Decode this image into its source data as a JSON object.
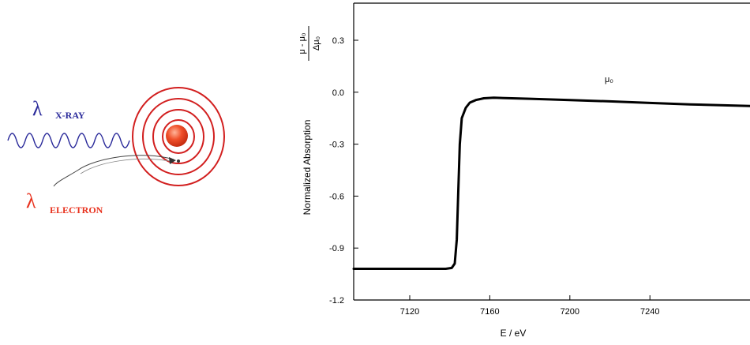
{
  "diagram": {
    "xray_symbol": "λ",
    "xray_label": "X-RAY",
    "electron_symbol": "λ",
    "electron_label": "ELECTRON",
    "colors": {
      "xray": "#2a2a9a",
      "electron": "#e8321e",
      "rings": "#d21f1f"
    },
    "icons": [
      "xray-wave-icon",
      "atom-icon",
      "curved-arrow-icon"
    ]
  },
  "chart_data": {
    "type": "line",
    "title": "",
    "xlabel": "E / eV",
    "ylabel": "Normalized Absorption",
    "ylabel_formula": {
      "numerator": "μ - μ₀",
      "denominator": "Δμ₀"
    },
    "annotation": "μ₀",
    "xlim": [
      7092,
      7290
    ],
    "ylim": [
      -1.2,
      0.45
    ],
    "xticks": [
      7120,
      7160,
      7200,
      7240
    ],
    "yticks": [
      0.3,
      0.0,
      -0.3,
      -0.6,
      -0.9,
      -1.2
    ],
    "ytick_labels": [
      "0.3",
      "0.0",
      "-0.3",
      "-0.6",
      "-0.9",
      "-1.2"
    ],
    "series": [
      {
        "x": [
          7092,
          7120,
          7138,
          7141,
          7142.5,
          7143.5,
          7144.2,
          7145,
          7146,
          7148,
          7150,
          7153,
          7157,
          7162,
          7180,
          7200,
          7220,
          7240,
          7260,
          7290
        ],
        "y": [
          -1.02,
          -1.02,
          -1.02,
          -1.015,
          -0.99,
          -0.85,
          -0.6,
          -0.3,
          -0.15,
          -0.09,
          -0.06,
          -0.045,
          -0.035,
          -0.032,
          -0.038,
          -0.045,
          -0.053,
          -0.062,
          -0.07,
          -0.08
        ]
      }
    ],
    "color": "#000000",
    "grid": false
  }
}
